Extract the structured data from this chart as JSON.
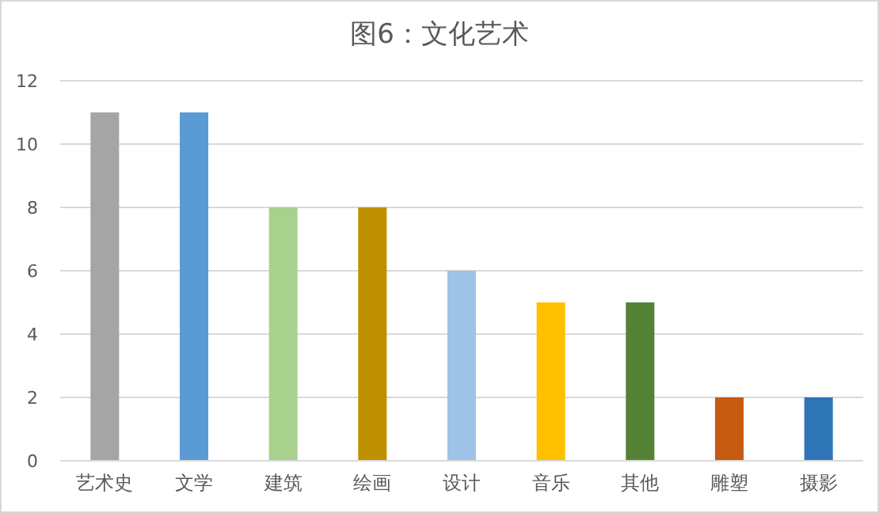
{
  "chart_data": {
    "type": "bar",
    "title": "图6：文化艺术",
    "categories": [
      "艺术史",
      "文学",
      "建筑",
      "绘画",
      "设计",
      "音乐",
      "其他",
      "雕塑",
      "摄影"
    ],
    "values": [
      11,
      11,
      8,
      8,
      6,
      5,
      5,
      2,
      2
    ],
    "colors": [
      "#a5a5a5",
      "#5b9bd5",
      "#a9d18e",
      "#bf9000",
      "#9dc3e6",
      "#ffc000",
      "#548235",
      "#c55a11",
      "#2e75b6"
    ],
    "ylim": [
      0,
      12
    ],
    "yticks": [
      0,
      2,
      4,
      6,
      8,
      10,
      12
    ],
    "grid": "y"
  }
}
